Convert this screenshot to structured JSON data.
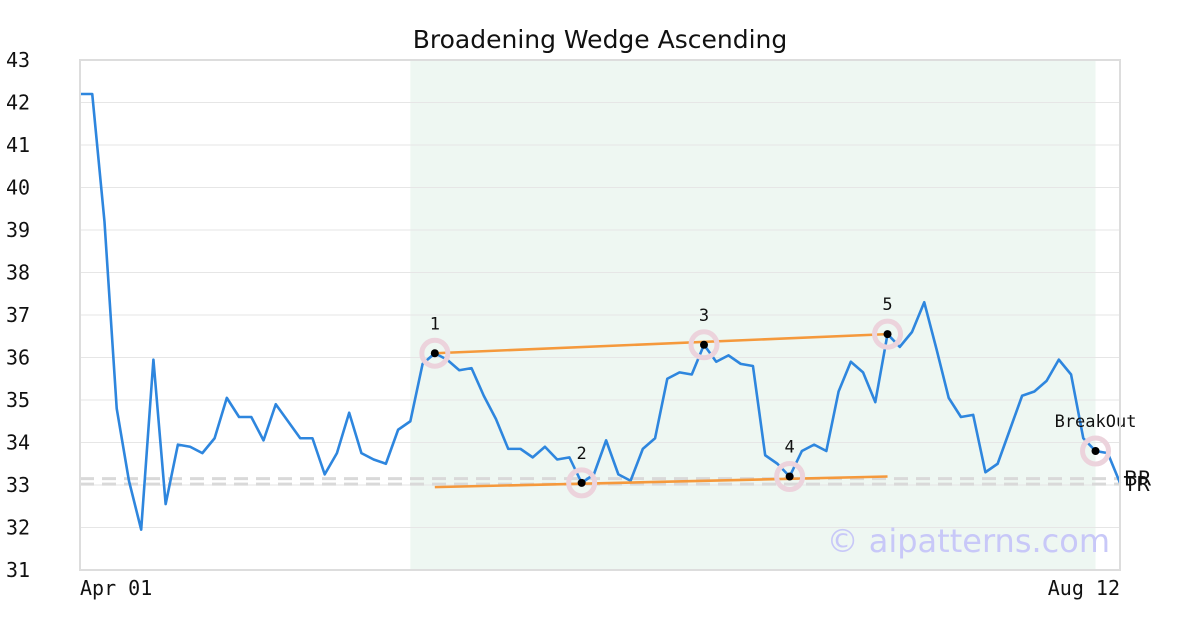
{
  "chart_data": {
    "type": "line",
    "title": "Broadening Wedge Ascending",
    "xlabel": "",
    "ylabel": "",
    "ylim": [
      31,
      43
    ],
    "y_ticks": [
      31,
      32,
      33,
      34,
      35,
      36,
      37,
      38,
      39,
      40,
      41,
      42,
      43
    ],
    "x_tick_labels": [
      "Apr 01",
      "Aug 12"
    ],
    "grid": true,
    "series": [
      {
        "color": "#2e86de",
        "values": [
          42.2,
          42.2,
          39.2,
          34.8,
          33.1,
          31.95,
          35.95,
          32.55,
          33.95,
          33.9,
          33.75,
          34.1,
          35.05,
          34.6,
          34.6,
          34.05,
          34.9,
          34.5,
          34.1,
          34.1,
          33.25,
          33.75,
          34.7,
          33.75,
          33.6,
          33.5,
          34.3,
          34.5,
          35.85,
          36.1,
          35.95,
          35.7,
          35.75,
          35.1,
          34.55,
          33.85,
          33.85,
          33.65,
          33.9,
          33.6,
          33.65,
          33.05,
          33.25,
          34.05,
          33.25,
          33.1,
          33.85,
          34.1,
          35.5,
          35.65,
          35.6,
          36.3,
          35.9,
          36.05,
          35.85,
          35.8,
          33.7,
          33.5,
          33.2,
          33.8,
          33.95,
          33.8,
          35.2,
          35.9,
          35.65,
          34.95,
          36.55,
          36.25,
          36.6,
          37.3,
          36.2,
          35.05,
          34.6,
          34.65,
          33.3,
          33.5,
          34.3,
          35.1,
          35.2,
          35.45,
          35.95,
          35.6,
          34.1,
          33.8,
          33.75,
          33.05
        ]
      }
    ],
    "pattern_region": {
      "start_index": 27,
      "end_index": 83,
      "color": "#eef7f2"
    },
    "points": [
      {
        "label": "1",
        "index": 29,
        "value": 36.1
      },
      {
        "label": "2",
        "index": 41,
        "value": 33.05
      },
      {
        "label": "3",
        "index": 51,
        "value": 36.3
      },
      {
        "label": "4",
        "index": 58,
        "value": 33.2
      },
      {
        "label": "5",
        "index": 66,
        "value": 36.55
      },
      {
        "label": "BreakOut",
        "index": 83,
        "value": 33.8
      }
    ],
    "trend_lines": [
      {
        "name": "upper",
        "from": {
          "index": 29,
          "value": 36.1
        },
        "to": {
          "index": 66,
          "value": 36.55
        },
        "color": "#f5993c"
      },
      {
        "name": "lower",
        "from": {
          "index": 29,
          "value": 32.95
        },
        "to": {
          "index": 66,
          "value": 33.2
        },
        "color": "#f5993c"
      }
    ],
    "reference_lines": [
      {
        "label": "BR",
        "value": 33.15
      },
      {
        "label": "TR",
        "value": 33.02
      }
    ],
    "watermark": "© aipatterns.com"
  }
}
